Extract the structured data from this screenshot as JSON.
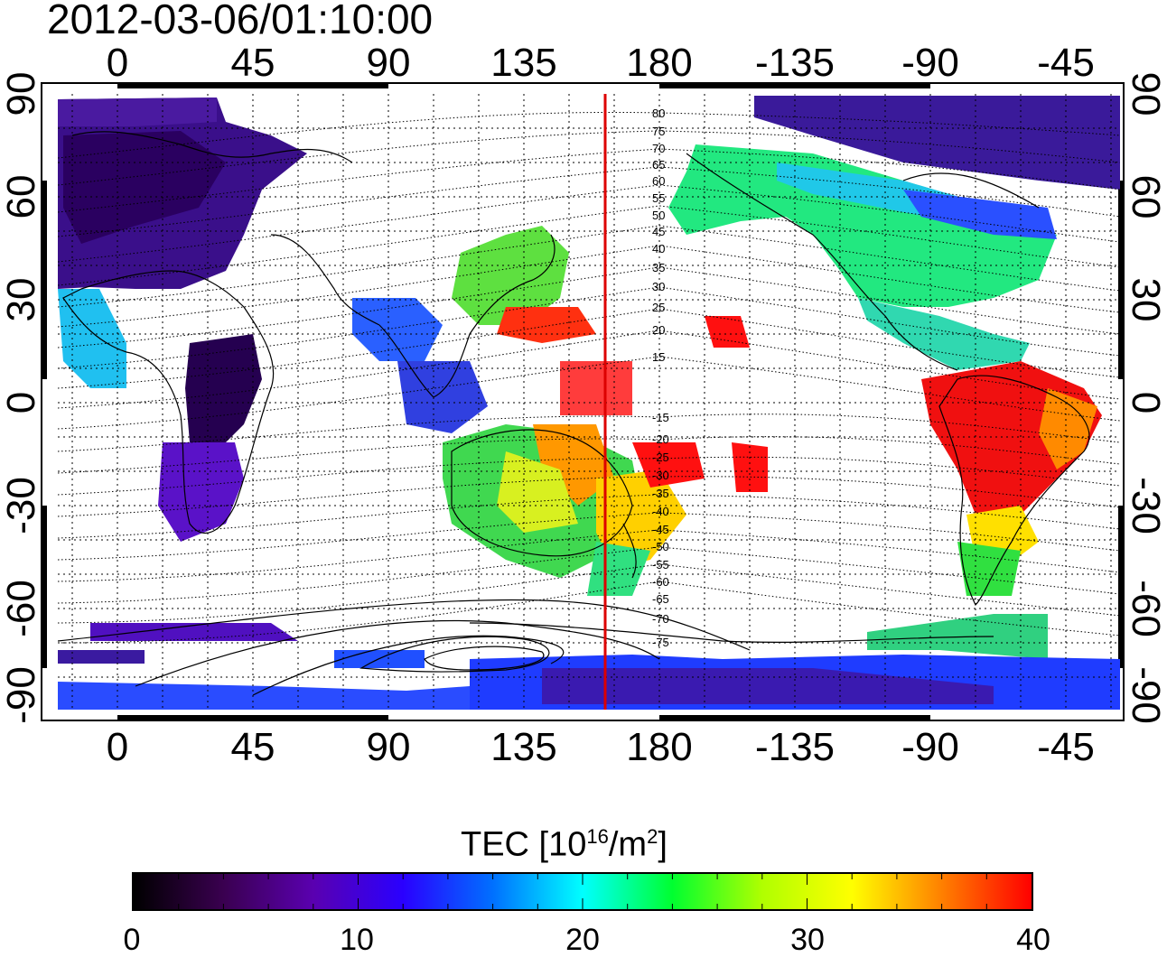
{
  "timestamp": "2012-03-06/01:10:00",
  "map": {
    "lon_ticks_top": [
      "0",
      "45",
      "90",
      "135",
      "180",
      "-135",
      "-90",
      "-45"
    ],
    "lon_ticks_bottom": [
      "0",
      "45",
      "90",
      "135",
      "180",
      "-135",
      "-90",
      "-45"
    ],
    "lat_ticks_left": [
      "90",
      "60",
      "30",
      "0",
      "-30",
      "-60",
      "-90"
    ],
    "lat_ticks_right": [
      "90",
      "60",
      "30",
      "0",
      "-30",
      "-60",
      "-90"
    ],
    "mlat_contours_north": [
      "80",
      "75",
      "70",
      "65",
      "60",
      "55",
      "50",
      "45",
      "40",
      "35",
      "30",
      "25",
      "20",
      "15"
    ],
    "mlat_contours_south": [
      "-15",
      "-20",
      "-25",
      "-30",
      "-35",
      "-40",
      "-45",
      "-50",
      "-55",
      "-60",
      "-65",
      "-70",
      "-75"
    ],
    "grid": true,
    "noon_meridian_color": "#dd0000",
    "coastline_color": "#000000"
  },
  "colorbar": {
    "title_prefix": "TEC  [10",
    "title_exp1": "16",
    "title_mid": "/m",
    "title_exp2": "2",
    "title_suffix": "]",
    "min": 0,
    "max": 40,
    "tick_labels": [
      "0",
      "10",
      "20",
      "30",
      "40"
    ],
    "colors": [
      "#000000",
      "#3a0050",
      "#5a00b0",
      "#2a00ff",
      "#0070ff",
      "#00ffff",
      "#00ff30",
      "#b0ff00",
      "#ffff00",
      "#ff8000",
      "#ff0000"
    ]
  }
}
